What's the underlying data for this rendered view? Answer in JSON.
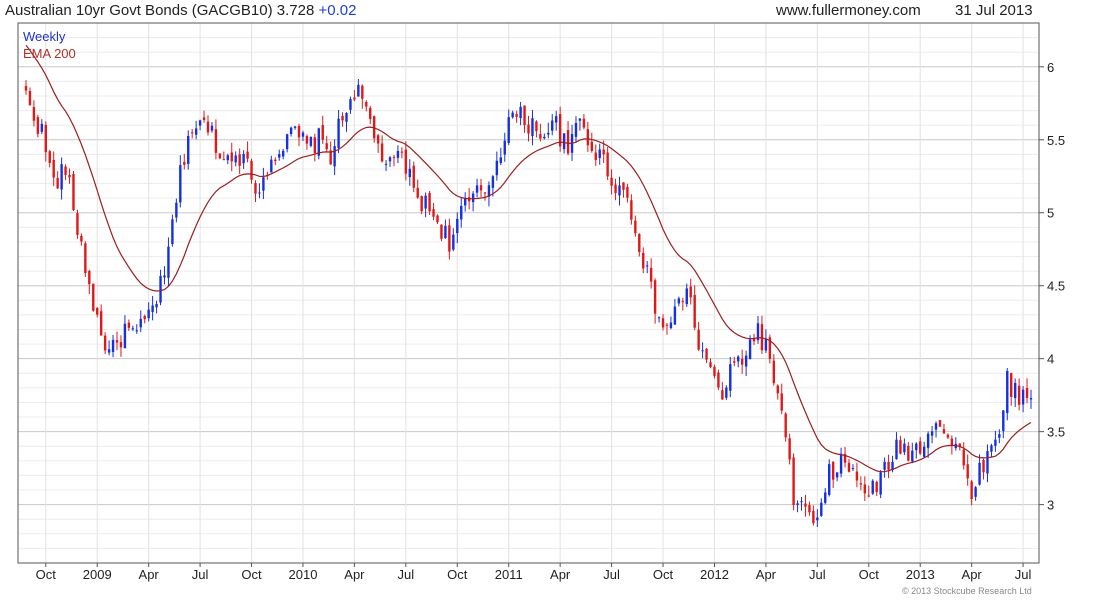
{
  "header": {
    "title": "Australian 10yr Govt Bonds (GACGB10) 3.728",
    "change": "+0.02",
    "source": "www.fullermoney.com",
    "date": "31 Jul 2013"
  },
  "legend": {
    "weekly": "Weekly",
    "ema": "EMA 200"
  },
  "copyright": "© 2013 Stockcube Research Ltd",
  "colors": {
    "up": "#1530e0",
    "down": "#e01818",
    "ema": "#9a1f1f",
    "grid": "#dcdcdc",
    "frame": "#555555"
  },
  "chart_data": {
    "type": "candlestick",
    "interval": "Weekly",
    "ylim": [
      2.6,
      6.3
    ],
    "y_ticks": [
      3,
      3.5,
      4,
      4.5,
      5,
      5.5,
      6
    ],
    "x_tick_labels": [
      "Oct",
      "2009",
      "Apr",
      "Jul",
      "Oct",
      "2010",
      "Apr",
      "Jul",
      "Oct",
      "2011",
      "Apr",
      "Jul",
      "Oct",
      "2012",
      "Apr",
      "Jul",
      "Oct",
      "2013",
      "Apr",
      "Jul"
    ],
    "x_range_weeks": 255,
    "x_tick_weeks": [
      5,
      18,
      31,
      44,
      57,
      70,
      83,
      96,
      109,
      122,
      135,
      148,
      161,
      174,
      187,
      200,
      213,
      226,
      239,
      252
    ],
    "close_anchors": [
      [
        0,
        5.8
      ],
      [
        4,
        5.55
      ],
      [
        7,
        5.2
      ],
      [
        10,
        5.3
      ],
      [
        13,
        4.9
      ],
      [
        16,
        4.5
      ],
      [
        19,
        4.15
      ],
      [
        22,
        4.05
      ],
      [
        25,
        4.2
      ],
      [
        28,
        4.15
      ],
      [
        31,
        4.3
      ],
      [
        35,
        4.55
      ],
      [
        38,
        5.1
      ],
      [
        41,
        5.55
      ],
      [
        44,
        5.6
      ],
      [
        47,
        5.55
      ],
      [
        50,
        5.35
      ],
      [
        53,
        5.45
      ],
      [
        56,
        5.3
      ],
      [
        59,
        5.15
      ],
      [
        62,
        5.4
      ],
      [
        65,
        5.45
      ],
      [
        68,
        5.55
      ],
      [
        71,
        5.45
      ],
      [
        74,
        5.5
      ],
      [
        77,
        5.4
      ],
      [
        80,
        5.65
      ],
      [
        83,
        5.85
      ],
      [
        86,
        5.7
      ],
      [
        89,
        5.45
      ],
      [
        92,
        5.3
      ],
      [
        95,
        5.4
      ],
      [
        98,
        5.15
      ],
      [
        101,
        5.05
      ],
      [
        104,
        4.95
      ],
      [
        107,
        4.8
      ],
      [
        110,
        5.0
      ],
      [
        113,
        5.1
      ],
      [
        116,
        5.15
      ],
      [
        119,
        5.35
      ],
      [
        122,
        5.65
      ],
      [
        125,
        5.65
      ],
      [
        128,
        5.6
      ],
      [
        131,
        5.55
      ],
      [
        134,
        5.6
      ],
      [
        137,
        5.4
      ],
      [
        140,
        5.65
      ],
      [
        143,
        5.45
      ],
      [
        146,
        5.35
      ],
      [
        149,
        5.2
      ],
      [
        152,
        5.1
      ],
      [
        155,
        4.8
      ],
      [
        158,
        4.45
      ],
      [
        161,
        4.2
      ],
      [
        164,
        4.3
      ],
      [
        167,
        4.5
      ],
      [
        170,
        4.1
      ],
      [
        173,
        3.9
      ],
      [
        176,
        3.75
      ],
      [
        179,
        3.95
      ],
      [
        182,
        4.05
      ],
      [
        185,
        4.2
      ],
      [
        188,
        4.0
      ],
      [
        191,
        3.6
      ],
      [
        194,
        3.05
      ],
      [
        197,
        2.95
      ],
      [
        200,
        2.85
      ],
      [
        203,
        3.2
      ],
      [
        206,
        3.3
      ],
      [
        209,
        3.2
      ],
      [
        212,
        3.1
      ],
      [
        215,
        3.1
      ],
      [
        218,
        3.3
      ],
      [
        221,
        3.4
      ],
      [
        224,
        3.35
      ],
      [
        227,
        3.45
      ],
      [
        230,
        3.6
      ],
      [
        233,
        3.45
      ],
      [
        236,
        3.35
      ],
      [
        239,
        3.1
      ],
      [
        242,
        3.3
      ],
      [
        245,
        3.4
      ],
      [
        248,
        3.85
      ],
      [
        251,
        3.75
      ],
      [
        254,
        3.73
      ]
    ]
  }
}
